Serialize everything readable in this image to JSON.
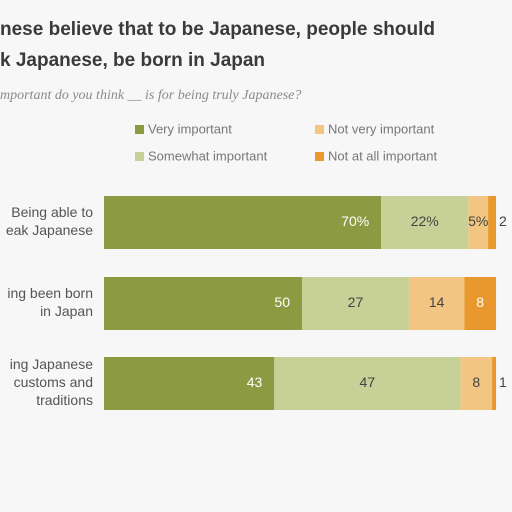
{
  "chart_data": {
    "type": "stacked-bar-horizontal",
    "title": [
      "nese believe that to be Japanese, people should",
      "k Japanese, be born in Japan"
    ],
    "subtitle": "mportant do you think __ is for being truly Japanese?",
    "categories": [
      [
        "Being able to",
        "eak Japanese"
      ],
      [
        "ing been born",
        "in Japan"
      ],
      [
        "ing Japanese",
        "customs and",
        "traditions"
      ]
    ],
    "series": [
      {
        "name": "Very important",
        "color": "#8c9b42",
        "values": [
          70,
          50,
          43
        ],
        "value_labels": [
          "70%",
          "50",
          "43"
        ]
      },
      {
        "name": "Somewhat important",
        "color": "#c7d097",
        "values": [
          22,
          27,
          47
        ],
        "value_labels": [
          "22%",
          "27",
          "47"
        ]
      },
      {
        "name": "Not very important",
        "color": "#f2c682",
        "values": [
          5,
          14,
          8
        ],
        "value_labels": [
          "5%",
          "14",
          "8"
        ]
      },
      {
        "name": "Not at all important",
        "color": "#e8982c",
        "values": [
          2,
          8,
          1
        ],
        "value_labels": [
          "2",
          "8",
          "1"
        ]
      }
    ]
  }
}
